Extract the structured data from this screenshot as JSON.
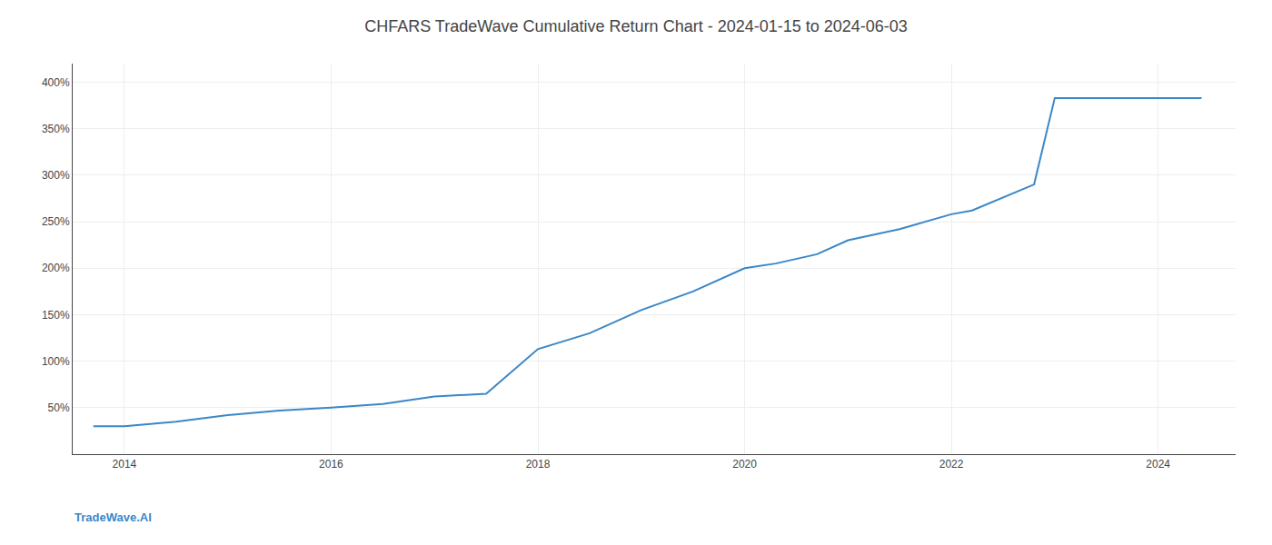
{
  "chart_data": {
    "type": "line",
    "title": "CHFARS TradeWave Cumulative Return Chart - 2024-01-15 to 2024-06-03",
    "annotations": [
      "TradeWave.AI"
    ],
    "x": [
      2013.7,
      2014.0,
      2014.5,
      2015.0,
      2015.5,
      2016.0,
      2016.5,
      2017.0,
      2017.5,
      2018.0,
      2018.5,
      2019.0,
      2019.5,
      2020.0,
      2020.3,
      2020.7,
      2021.0,
      2021.5,
      2022.0,
      2022.2,
      2022.8,
      2023.0,
      2023.4,
      2024.0,
      2024.42
    ],
    "values": [
      30,
      30,
      35,
      42,
      47,
      50,
      54,
      62,
      65,
      113,
      130,
      155,
      175,
      200,
      205,
      215,
      230,
      242,
      258,
      262,
      290,
      383,
      383,
      383,
      383
    ],
    "color": "#3a87c8",
    "xlim": [
      2013.5,
      2024.75
    ],
    "xticks": [
      2014,
      2016,
      2018,
      2020,
      2022,
      2024
    ],
    "ylim": [
      0,
      420
    ],
    "yticks": [
      {
        "value": 50,
        "label": "50%"
      },
      {
        "value": 100,
        "label": "100%"
      },
      {
        "value": 150,
        "label": "150%"
      },
      {
        "value": 200,
        "label": "200%"
      },
      {
        "value": 250,
        "label": "250%"
      },
      {
        "value": 300,
        "label": "300%"
      },
      {
        "value": 350,
        "label": "350%"
      },
      {
        "value": 400,
        "label": "400%"
      }
    ],
    "grid": true
  }
}
